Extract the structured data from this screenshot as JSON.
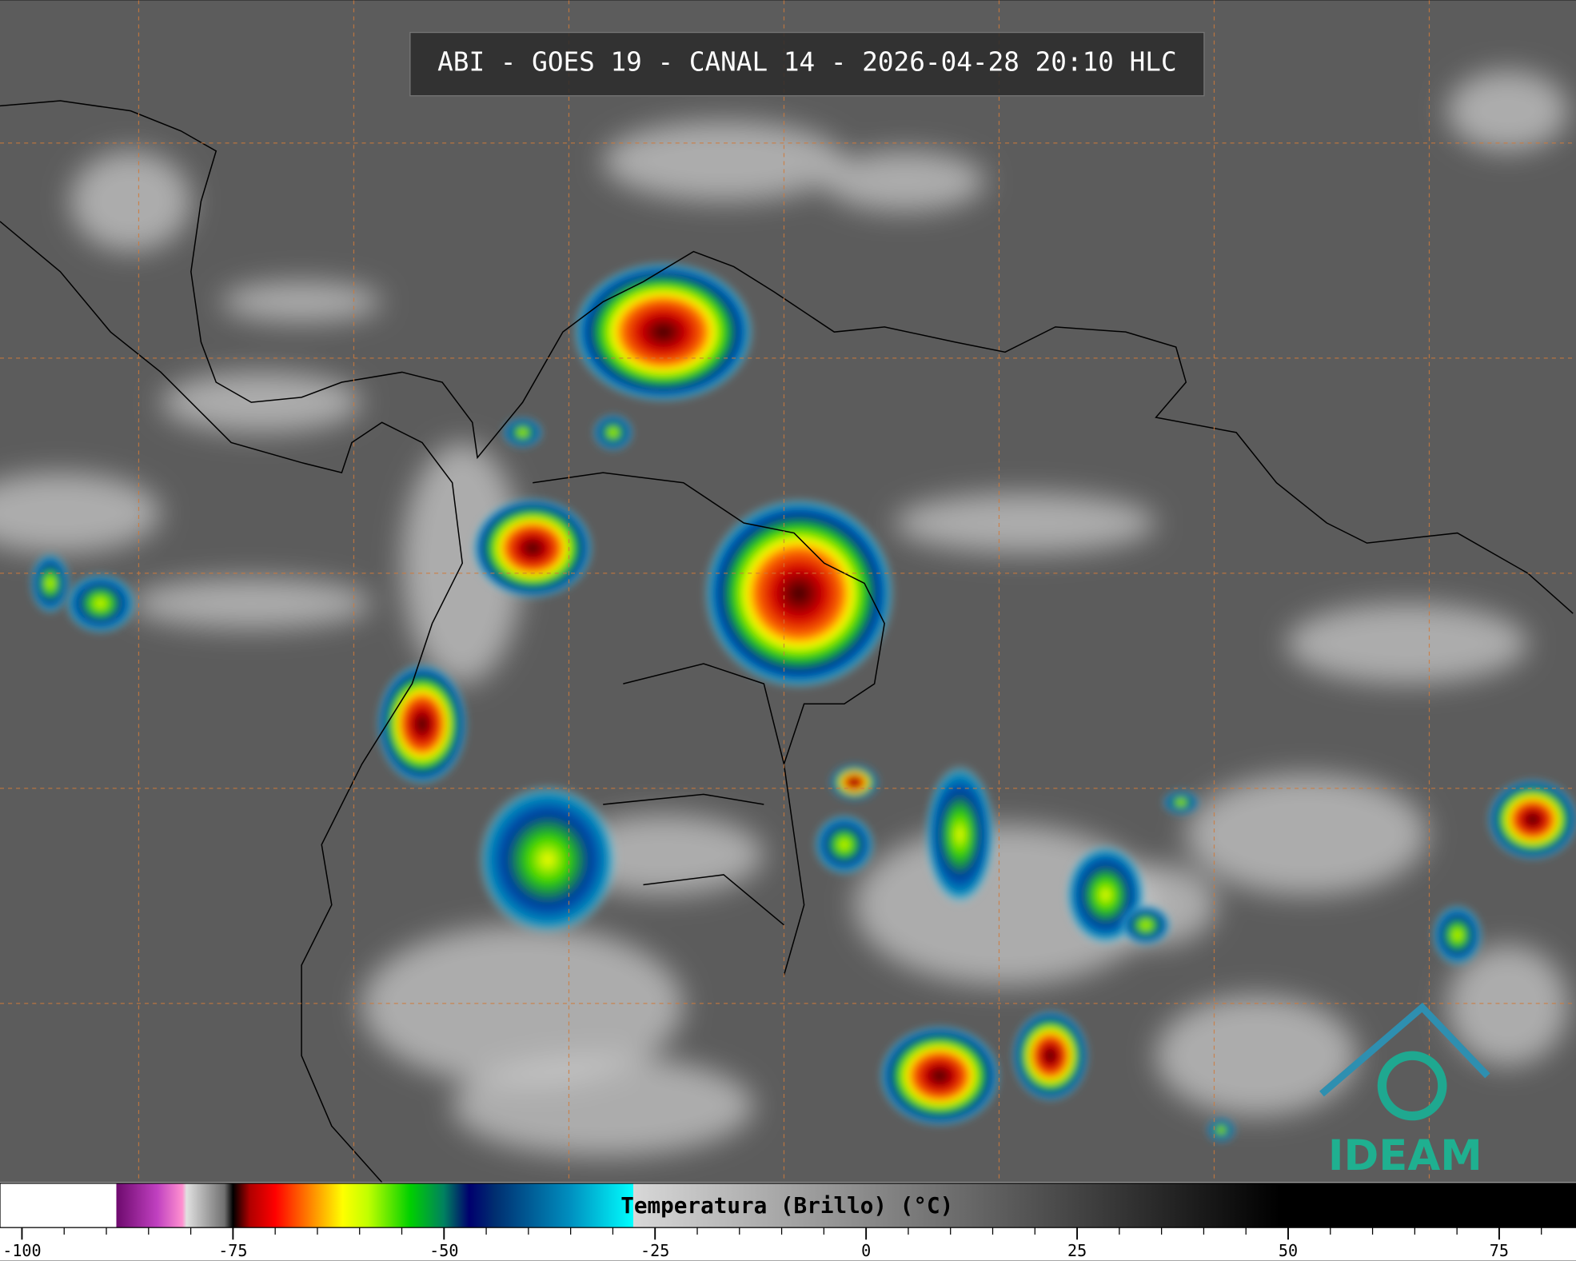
{
  "title": "ABI - GOES 19 - CANAL 14 - 2026-04-28 20:10 HLC",
  "logo": "IDEAM",
  "colorbar": {
    "label": "Temperatura (Brillo) (°C)",
    "xlim": [
      -102.6,
      84.1
    ],
    "ticks": [
      -100,
      -75,
      -50,
      -25,
      0,
      25,
      50,
      75
    ],
    "minor_ticks": [
      -95,
      -90,
      -85,
      -80,
      -70,
      -65,
      -60,
      -55,
      -45,
      -40,
      -35,
      -30,
      -20,
      -15,
      -10,
      -5,
      5,
      10,
      15,
      20,
      30,
      35,
      40,
      45,
      55,
      60,
      65,
      70,
      80
    ],
    "stops": [
      {
        "value": -102.6,
        "color": "#ffffff"
      },
      {
        "value": -88.8,
        "color": "#ffffff"
      },
      {
        "value": -88.8,
        "color": "#6e0a6e"
      },
      {
        "value": -84,
        "color": "#c040c0"
      },
      {
        "value": -81,
        "color": "#ff90d0"
      },
      {
        "value": -80.5,
        "color": "#e0e0e0"
      },
      {
        "value": -76,
        "color": "#707070"
      },
      {
        "value": -75,
        "color": "#000000"
      },
      {
        "value": -73,
        "color": "#b00000"
      },
      {
        "value": -70,
        "color": "#ff0000"
      },
      {
        "value": -66,
        "color": "#ff8000"
      },
      {
        "value": -62,
        "color": "#ffff00"
      },
      {
        "value": -59,
        "color": "#c0ff00"
      },
      {
        "value": -54,
        "color": "#00d000"
      },
      {
        "value": -50,
        "color": "#008060"
      },
      {
        "value": -47,
        "color": "#00006e"
      },
      {
        "value": -44,
        "color": "#002e70"
      },
      {
        "value": -35,
        "color": "#0090c0"
      },
      {
        "value": -27.6,
        "color": "#00ffff"
      },
      {
        "value": -27.6,
        "color": "#d8d8d8"
      },
      {
        "value": 49,
        "color": "#000000"
      },
      {
        "value": 84.1,
        "color": "#000000"
      }
    ]
  }
}
